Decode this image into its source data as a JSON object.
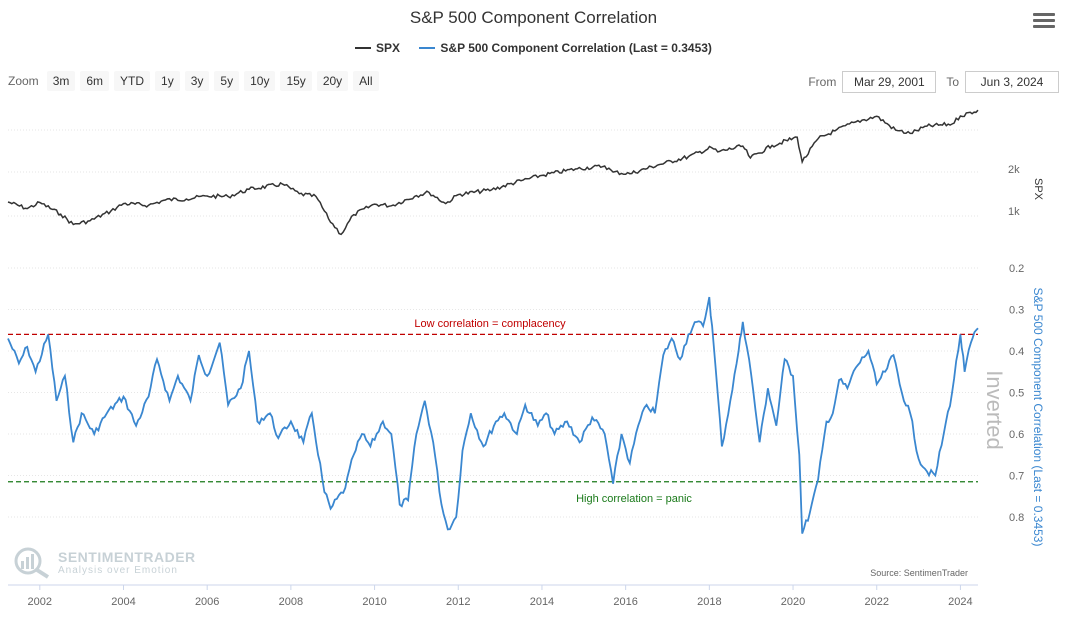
{
  "chart_title": "S&P 500 Component Correlation",
  "legend": [
    {
      "label": "SPX",
      "color": "#333333"
    },
    {
      "label": "S&P 500 Component Correlation (Last = 0.3453)",
      "color": "#3a87d0"
    }
  ],
  "zoom": {
    "label": "Zoom",
    "buttons": [
      "3m",
      "6m",
      "YTD",
      "1y",
      "3y",
      "5y",
      "10y",
      "15y",
      "20y",
      "All"
    ]
  },
  "range": {
    "from_label": "From",
    "from_value": "Mar 29, 2001",
    "to_label": "To",
    "to_value": "Jun 3, 2024"
  },
  "menu_icon": "hamburger-menu-icon",
  "source": "Source: SentimenTrader",
  "watermark": {
    "name": "SENTIMENTRADER",
    "tagline": "Analysis over Emotion"
  },
  "annotations": {
    "low": "Low correlation = complacency",
    "high": "High correlation = panic",
    "inverted": "Inverted"
  },
  "chart_data": {
    "type": "line",
    "x_ticks": [
      "2002",
      "2004",
      "2006",
      "2008",
      "2010",
      "2012",
      "2014",
      "2016",
      "2018",
      "2020",
      "2022",
      "2024"
    ],
    "x_range": [
      "2001-03-29",
      "2024-06-03"
    ],
    "panels": [
      {
        "name": "SPX",
        "axis_title": "SPX",
        "scale": "log",
        "tick_labels": [
          "1k",
          "2k"
        ],
        "tick_values": [
          1000,
          2000
        ],
        "color": "#333333",
        "points": [
          [
            2001.24,
            1160
          ],
          [
            2001.7,
            1040
          ],
          [
            2002.0,
            1150
          ],
          [
            2002.5,
            950
          ],
          [
            2002.8,
            800
          ],
          [
            2003.2,
            850
          ],
          [
            2003.7,
            1000
          ],
          [
            2004.0,
            1130
          ],
          [
            2004.6,
            1100
          ],
          [
            2005.0,
            1200
          ],
          [
            2005.5,
            1220
          ],
          [
            2006.0,
            1280
          ],
          [
            2006.5,
            1270
          ],
          [
            2007.0,
            1430
          ],
          [
            2007.8,
            1560
          ],
          [
            2008.2,
            1330
          ],
          [
            2008.6,
            1270
          ],
          [
            2008.9,
            880
          ],
          [
            2009.2,
            680
          ],
          [
            2009.5,
            940
          ],
          [
            2010.0,
            1120
          ],
          [
            2010.4,
            1090
          ],
          [
            2011.0,
            1290
          ],
          [
            2011.3,
            1360
          ],
          [
            2011.7,
            1130
          ],
          [
            2012.0,
            1310
          ],
          [
            2012.8,
            1420
          ],
          [
            2013.5,
            1650
          ],
          [
            2014.0,
            1800
          ],
          [
            2014.8,
            2000
          ],
          [
            2015.5,
            2100
          ],
          [
            2015.7,
            1900
          ],
          [
            2016.1,
            1850
          ],
          [
            2016.8,
            2150
          ],
          [
            2017.5,
            2450
          ],
          [
            2018.05,
            2850
          ],
          [
            2018.2,
            2650
          ],
          [
            2018.8,
            2920
          ],
          [
            2018.98,
            2400
          ],
          [
            2019.5,
            2950
          ],
          [
            2020.1,
            3380
          ],
          [
            2020.22,
            2250
          ],
          [
            2020.6,
            3300
          ],
          [
            2021.0,
            3750
          ],
          [
            2021.5,
            4350
          ],
          [
            2022.0,
            4770
          ],
          [
            2022.45,
            3800
          ],
          [
            2022.8,
            3600
          ],
          [
            2023.2,
            4050
          ],
          [
            2023.8,
            4200
          ],
          [
            2024.0,
            4800
          ],
          [
            2024.42,
            5280
          ]
        ]
      },
      {
        "name": "S&P 500 Component Correlation (Last = 0.3453)",
        "axis_title": "S&P 500 Component Correlation (Last = 0.3453)",
        "inverted": true,
        "ylim": [
          0.2,
          0.85
        ],
        "tick_values": [
          0.2,
          0.3,
          0.4,
          0.5,
          0.6,
          0.7,
          0.8
        ],
        "tick_labels": [
          "0.2",
          "0.3",
          "0.4",
          "0.5",
          "0.6",
          "0.7",
          "0.8"
        ],
        "color": "#3a87d0",
        "reference_lines": [
          {
            "value": 0.36,
            "color": "#c00000",
            "label": "Low correlation = complacency"
          },
          {
            "value": 0.715,
            "color": "#1a7a1a",
            "label": "High correlation = panic"
          }
        ],
        "points": [
          [
            2001.24,
            0.37
          ],
          [
            2001.5,
            0.43
          ],
          [
            2001.7,
            0.39
          ],
          [
            2001.9,
            0.45
          ],
          [
            2002.2,
            0.36
          ],
          [
            2002.4,
            0.52
          ],
          [
            2002.6,
            0.46
          ],
          [
            2002.8,
            0.62
          ],
          [
            2003.0,
            0.55
          ],
          [
            2003.3,
            0.6
          ],
          [
            2003.6,
            0.55
          ],
          [
            2004.0,
            0.51
          ],
          [
            2004.3,
            0.58
          ],
          [
            2004.6,
            0.51
          ],
          [
            2004.8,
            0.42
          ],
          [
            2005.1,
            0.52
          ],
          [
            2005.3,
            0.46
          ],
          [
            2005.6,
            0.52
          ],
          [
            2005.8,
            0.41
          ],
          [
            2006.0,
            0.46
          ],
          [
            2006.3,
            0.38
          ],
          [
            2006.5,
            0.53
          ],
          [
            2006.8,
            0.49
          ],
          [
            2007.0,
            0.4
          ],
          [
            2007.2,
            0.57
          ],
          [
            2007.5,
            0.55
          ],
          [
            2007.7,
            0.61
          ],
          [
            2008.0,
            0.57
          ],
          [
            2008.3,
            0.62
          ],
          [
            2008.5,
            0.55
          ],
          [
            2008.8,
            0.74
          ],
          [
            2008.95,
            0.78
          ],
          [
            2009.3,
            0.73
          ],
          [
            2009.5,
            0.65
          ],
          [
            2009.7,
            0.6
          ],
          [
            2009.9,
            0.63
          ],
          [
            2010.2,
            0.57
          ],
          [
            2010.4,
            0.6
          ],
          [
            2010.6,
            0.77
          ],
          [
            2010.8,
            0.76
          ],
          [
            2011.0,
            0.6
          ],
          [
            2011.2,
            0.52
          ],
          [
            2011.4,
            0.62
          ],
          [
            2011.6,
            0.77
          ],
          [
            2011.75,
            0.83
          ],
          [
            2011.95,
            0.8
          ],
          [
            2012.1,
            0.64
          ],
          [
            2012.3,
            0.55
          ],
          [
            2012.6,
            0.63
          ],
          [
            2012.9,
            0.57
          ],
          [
            2013.1,
            0.55
          ],
          [
            2013.4,
            0.6
          ],
          [
            2013.6,
            0.53
          ],
          [
            2013.9,
            0.58
          ],
          [
            2014.1,
            0.55
          ],
          [
            2014.3,
            0.6
          ],
          [
            2014.6,
            0.57
          ],
          [
            2014.9,
            0.62
          ],
          [
            2015.2,
            0.56
          ],
          [
            2015.5,
            0.6
          ],
          [
            2015.7,
            0.72
          ],
          [
            2015.9,
            0.6
          ],
          [
            2016.1,
            0.67
          ],
          [
            2016.3,
            0.58
          ],
          [
            2016.5,
            0.53
          ],
          [
            2016.7,
            0.55
          ],
          [
            2016.9,
            0.41
          ],
          [
            2017.1,
            0.37
          ],
          [
            2017.3,
            0.42
          ],
          [
            2017.5,
            0.36
          ],
          [
            2017.7,
            0.33
          ],
          [
            2017.85,
            0.34
          ],
          [
            2018.0,
            0.27
          ],
          [
            2018.1,
            0.38
          ],
          [
            2018.3,
            0.63
          ],
          [
            2018.5,
            0.52
          ],
          [
            2018.7,
            0.4
          ],
          [
            2018.8,
            0.33
          ],
          [
            2018.95,
            0.42
          ],
          [
            2019.2,
            0.62
          ],
          [
            2019.4,
            0.49
          ],
          [
            2019.6,
            0.58
          ],
          [
            2019.8,
            0.42
          ],
          [
            2020.0,
            0.46
          ],
          [
            2020.15,
            0.65
          ],
          [
            2020.22,
            0.84
          ],
          [
            2020.4,
            0.79
          ],
          [
            2020.6,
            0.71
          ],
          [
            2020.8,
            0.57
          ],
          [
            2020.95,
            0.55
          ],
          [
            2021.1,
            0.47
          ],
          [
            2021.3,
            0.49
          ],
          [
            2021.5,
            0.44
          ],
          [
            2021.8,
            0.4
          ],
          [
            2022.0,
            0.48
          ],
          [
            2022.2,
            0.45
          ],
          [
            2022.4,
            0.41
          ],
          [
            2022.6,
            0.5
          ],
          [
            2022.8,
            0.55
          ],
          [
            2023.0,
            0.66
          ],
          [
            2023.2,
            0.69
          ],
          [
            2023.4,
            0.7
          ],
          [
            2023.6,
            0.6
          ],
          [
            2023.8,
            0.5
          ],
          [
            2024.0,
            0.36
          ],
          [
            2024.1,
            0.45
          ],
          [
            2024.25,
            0.38
          ],
          [
            2024.42,
            0.345
          ]
        ]
      }
    ],
    "grid": true
  }
}
